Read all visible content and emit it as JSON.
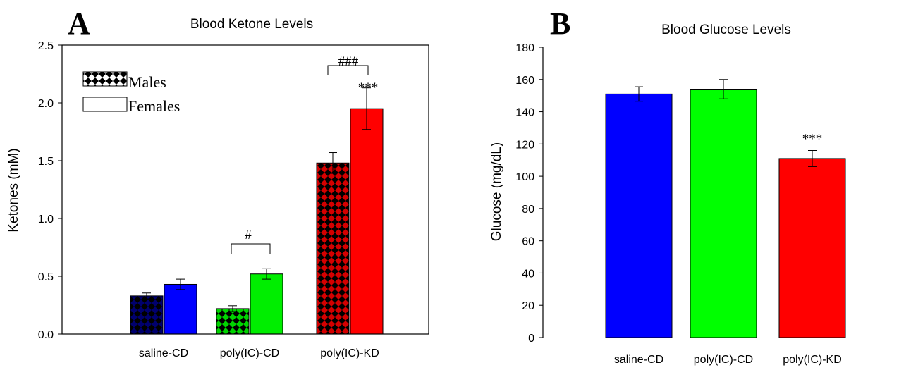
{
  "chart_data": [
    {
      "panel": "A",
      "type": "bar",
      "title": "Blood Ketone Levels",
      "xlabel": "",
      "ylabel": "Ketones (mM)",
      "ylim": [
        0,
        2.5
      ],
      "yticks": [
        "0.0",
        "0.5",
        "1.0",
        "1.5",
        "2.0",
        "2.5"
      ],
      "categories": [
        "saline-CD",
        "poly(IC)-CD",
        "poly(IC)-KD"
      ],
      "category_colors": [
        "#0000ff",
        "#00ee00",
        "#ff0000"
      ],
      "series": [
        {
          "name": "Males",
          "pattern": "diamond-check",
          "values": [
            0.33,
            0.22,
            1.48
          ],
          "errors": [
            0.025,
            0.025,
            0.09
          ]
        },
        {
          "name": "Females",
          "pattern": "solid",
          "values": [
            0.43,
            0.52,
            1.95
          ],
          "errors": [
            0.045,
            0.045,
            0.18
          ]
        }
      ],
      "legend": {
        "position": "top-left",
        "labels": [
          "Males",
          "Females"
        ]
      },
      "annotations": [
        {
          "text": "#",
          "category": "poly(IC)-CD",
          "type": "bracket"
        },
        {
          "text": "###",
          "category": "poly(IC)-KD",
          "type": "bracket"
        },
        {
          "text": "***",
          "category": "poly(IC)-KD",
          "series": "Females",
          "type": "label"
        }
      ],
      "grid": false
    },
    {
      "panel": "B",
      "type": "bar",
      "title": "Blood Glucose Levels",
      "xlabel": "",
      "ylabel": "Glucose  (mg/dL)",
      "ylim": [
        0,
        180
      ],
      "yticks": [
        "0",
        "20",
        "40",
        "60",
        "80",
        "100",
        "120",
        "140",
        "160",
        "180"
      ],
      "categories": [
        "saline-CD",
        "poly(IC)-CD",
        "poly(IC)-KD"
      ],
      "category_colors": [
        "#0000ff",
        "#00ff00",
        "#ff0000"
      ],
      "values": [
        151,
        154,
        111
      ],
      "errors": [
        4.5,
        6,
        5
      ],
      "annotations": [
        {
          "text": "***",
          "category": "poly(IC)-KD",
          "type": "label"
        }
      ],
      "grid": false
    }
  ]
}
